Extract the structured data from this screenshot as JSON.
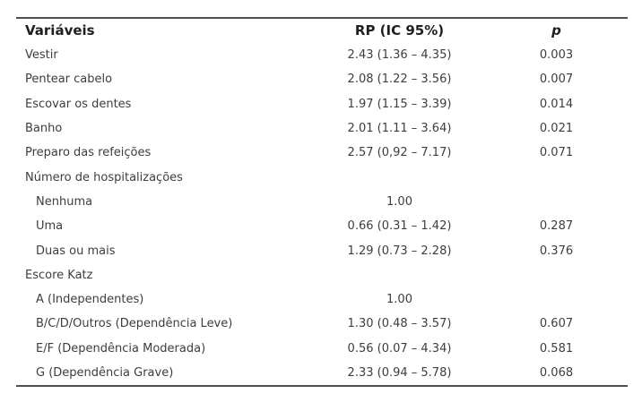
{
  "table": {
    "headers": [
      "Variáveis",
      "RP (IC 95%)",
      "p"
    ],
    "rows": [
      {
        "label": "Vestir",
        "rp": "2.43 (1.36 – 4.35)",
        "p": "0.003",
        "indent": false
      },
      {
        "label": "Pentear cabelo",
        "rp": "2.08 (1.22 – 3.56)",
        "p": "0.007",
        "indent": false
      },
      {
        "label": "Escovar os dentes",
        "rp": "1.97 (1.15 – 3.39)",
        "p": "0.014",
        "indent": false
      },
      {
        "label": "Banho",
        "rp": "2.01 (1.11 – 3.64)",
        "p": "0.021",
        "indent": false
      },
      {
        "label": "Preparo das refeições",
        "rp": "2.57 (0,92 – 7.17)",
        "p": "0.071",
        "indent": false
      },
      {
        "label": "Número de hospitalizações",
        "rp": "",
        "p": "",
        "indent": false
      },
      {
        "label": "Nenhuma",
        "rp": "1.00",
        "p": "",
        "indent": true
      },
      {
        "label": "Uma",
        "rp": "0.66 (0.31 – 1.42)",
        "p": "0.287",
        "indent": true
      },
      {
        "label": "Duas ou mais",
        "rp": "1.29 (0.73 – 2.28)",
        "p": "0.376",
        "indent": true
      },
      {
        "label": "Escore Katz",
        "rp": "",
        "p": "",
        "indent": false
      },
      {
        "label": "A (Independentes)",
        "rp": "1.00",
        "p": "",
        "indent": true
      },
      {
        "label": "B/C/D/Outros (Dependência Leve)",
        "rp": "1.30 (0.48 – 3.57)",
        "p": "0.607",
        "indent": true
      },
      {
        "label": "E/F (Dependência Moderada)",
        "rp": "0.56 (0.07 – 4.34)",
        "p": "0.581",
        "indent": true
      },
      {
        "label": "G (Dependência Grave)",
        "rp": "2.33 (0.94 – 5.78)",
        "p": "0.068",
        "indent": true
      }
    ]
  },
  "colors": {
    "text": "#3d3d3d",
    "rule": "#4f4f4f",
    "background": "#ffffff"
  }
}
